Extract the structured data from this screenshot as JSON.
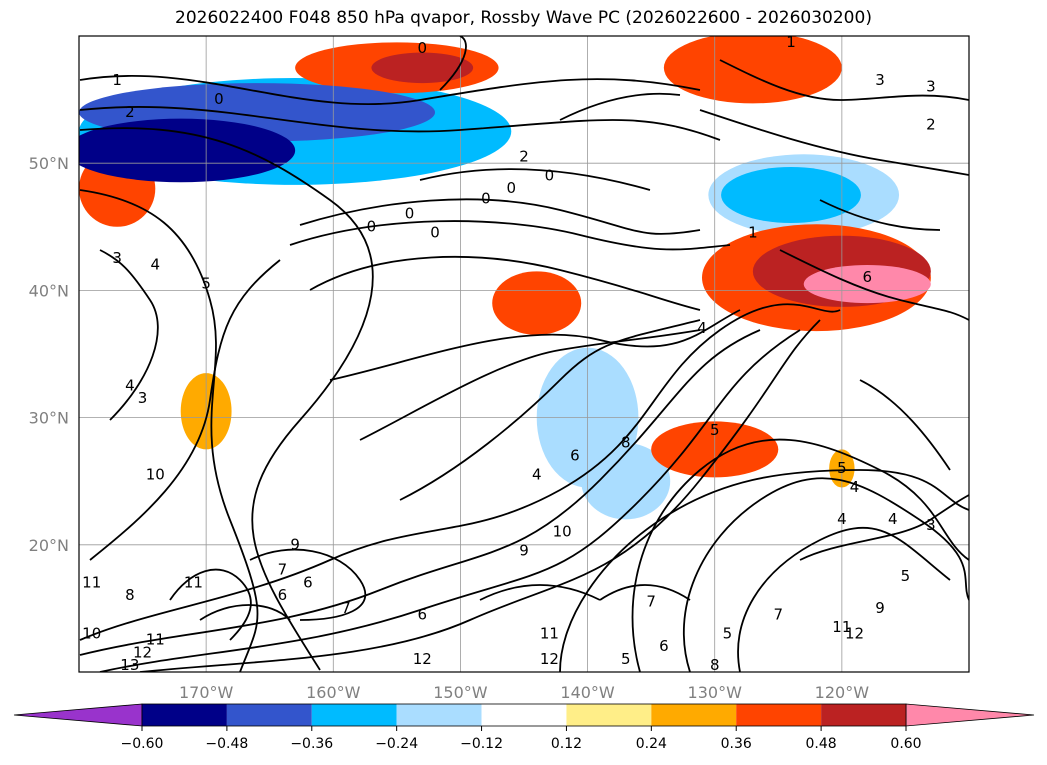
{
  "chart_data": {
    "type": "contour-map",
    "title": "2026022400 F048 850 hPa qvapor, Rossby Wave PC (2026022600 - 2026030200)",
    "projection": "cylindrical",
    "lon_range": [
      -180,
      -110
    ],
    "lat_range": [
      10,
      60
    ],
    "grid": true,
    "x_ticks": [
      {
        "lon": -170,
        "label": "170°W"
      },
      {
        "lon": -160,
        "label": "160°W"
      },
      {
        "lon": -150,
        "label": "150°W"
      },
      {
        "lon": -140,
        "label": "140°W"
      },
      {
        "lon": -130,
        "label": "130°W"
      },
      {
        "lon": -120,
        "label": "120°W"
      }
    ],
    "y_ticks": [
      {
        "lat": 20,
        "label": "20°N"
      },
      {
        "lat": 30,
        "label": "30°N"
      },
      {
        "lat": 40,
        "label": "40°N"
      },
      {
        "lat": 50,
        "label": "50°N"
      }
    ],
    "colorbar": {
      "levels": [
        -0.72,
        -0.6,
        -0.48,
        -0.36,
        -0.24,
        -0.12,
        0.12,
        0.24,
        0.36,
        0.48,
        0.6,
        0.72
      ],
      "colors": [
        "#9933cc",
        "#000088",
        "#3355cc",
        "#00bbff",
        "#aaddff",
        "#ffffff",
        "#ffee88",
        "#ffaa00",
        "#ff4400",
        "#bb2222",
        "#ff88aa"
      ],
      "extend_min_color": "#9933cc",
      "extend_max_color": "#ff88aa",
      "tick_labels": [
        "−0.60",
        "−0.48",
        "−0.36",
        "−0.24",
        "−0.12",
        "0.12",
        "0.24",
        "0.36",
        "0.48",
        "0.60"
      ]
    },
    "shaded_anomalies": [
      {
        "lon": -172,
        "lat": 51,
        "rx": 9,
        "ry": 2.5,
        "level": -0.6
      },
      {
        "lon": -166,
        "lat": 54,
        "rx": 14,
        "ry": 2.3,
        "level": -0.48
      },
      {
        "lon": -163,
        "lat": 52.5,
        "rx": 17,
        "ry": 4.2,
        "level": -0.36
      },
      {
        "lon": -124,
        "lat": 47.5,
        "rx": 5.5,
        "ry": 2.2,
        "level": -0.36
      },
      {
        "lon": -123,
        "lat": 47.5,
        "rx": 7.5,
        "ry": 3.2,
        "level": -0.24
      },
      {
        "lon": -140,
        "lat": 30,
        "rx": 4,
        "ry": 5.5,
        "level": -0.24
      },
      {
        "lon": -137,
        "lat": 25,
        "rx": 3.5,
        "ry": 3,
        "level": -0.24
      },
      {
        "lon": -155,
        "lat": 57.5,
        "rx": 8,
        "ry": 2,
        "level": 0.36
      },
      {
        "lon": -153,
        "lat": 57.5,
        "rx": 4,
        "ry": 1.2,
        "level": 0.48
      },
      {
        "lon": -127,
        "lat": 57.5,
        "rx": 7,
        "ry": 2.8,
        "level": 0.36
      },
      {
        "lon": -120,
        "lat": 41.5,
        "rx": 7,
        "ry": 2.8,
        "level": 0.48
      },
      {
        "lon": -118,
        "lat": 40.5,
        "rx": 5,
        "ry": 1.5,
        "level": 0.6
      },
      {
        "lon": -122,
        "lat": 41,
        "rx": 9,
        "ry": 4.2,
        "level": 0.36
      },
      {
        "lon": -144,
        "lat": 39,
        "rx": 3.5,
        "ry": 2.5,
        "level": 0.36
      },
      {
        "lon": -130,
        "lat": 27.5,
        "rx": 5,
        "ry": 2.2,
        "level": 0.36
      },
      {
        "lon": -177,
        "lat": 48,
        "rx": 3,
        "ry": 3,
        "level": 0.36
      },
      {
        "lon": -170,
        "lat": 30.5,
        "rx": 2,
        "ry": 3,
        "level": 0.24
      },
      {
        "lon": -120,
        "lat": 26,
        "rx": 1,
        "ry": 1.5,
        "level": 0.24
      }
    ],
    "contour_labels": [
      {
        "text": "1",
        "lon": -177,
        "lat": 56.5
      },
      {
        "text": "0",
        "lon": -169,
        "lat": 55
      },
      {
        "text": "2",
        "lon": -176,
        "lat": 54
      },
      {
        "text": "0",
        "lon": -153,
        "lat": 59
      },
      {
        "text": "1",
        "lon": -124,
        "lat": 59.5
      },
      {
        "text": "3",
        "lon": -117,
        "lat": 56.5
      },
      {
        "text": "3",
        "lon": -113,
        "lat": 56
      },
      {
        "text": "2",
        "lon": -113,
        "lat": 53
      },
      {
        "text": "2",
        "lon": -145,
        "lat": 50.5
      },
      {
        "text": "0",
        "lon": -143,
        "lat": 49
      },
      {
        "text": "0",
        "lon": -146,
        "lat": 48
      },
      {
        "text": "0",
        "lon": -148,
        "lat": 47.2
      },
      {
        "text": "0",
        "lon": -154,
        "lat": 46
      },
      {
        "text": "0",
        "lon": -157,
        "lat": 45
      },
      {
        "text": "0",
        "lon": -152,
        "lat": 44.5
      },
      {
        "text": "1",
        "lon": -127,
        "lat": 44.5
      },
      {
        "text": "6",
        "lon": -118,
        "lat": 41
      },
      {
        "text": "4",
        "lon": -131,
        "lat": 37
      },
      {
        "text": "3",
        "lon": -177,
        "lat": 42.5
      },
      {
        "text": "4",
        "lon": -174,
        "lat": 42
      },
      {
        "text": "5",
        "lon": -170,
        "lat": 40.5
      },
      {
        "text": "4",
        "lon": -176,
        "lat": 32.5
      },
      {
        "text": "3",
        "lon": -175,
        "lat": 31.5
      },
      {
        "text": "10",
        "lon": -174,
        "lat": 25.5
      },
      {
        "text": "4",
        "lon": -144,
        "lat": 25.5
      },
      {
        "text": "6",
        "lon": -141,
        "lat": 27
      },
      {
        "text": "8",
        "lon": -137,
        "lat": 28
      },
      {
        "text": "10",
        "lon": -142,
        "lat": 21
      },
      {
        "text": "9",
        "lon": -145,
        "lat": 19.5
      },
      {
        "text": "5",
        "lon": -130,
        "lat": 29
      },
      {
        "text": "5",
        "lon": -120,
        "lat": 26
      },
      {
        "text": "4",
        "lon": -119,
        "lat": 24.5
      },
      {
        "text": "4",
        "lon": -120,
        "lat": 22
      },
      {
        "text": "4",
        "lon": -116,
        "lat": 22
      },
      {
        "text": "3",
        "lon": -113,
        "lat": 21.5
      },
      {
        "text": "5",
        "lon": -115,
        "lat": 17.5
      },
      {
        "text": "9",
        "lon": -163,
        "lat": 20
      },
      {
        "text": "7",
        "lon": -164,
        "lat": 18
      },
      {
        "text": "6",
        "lon": -162,
        "lat": 17
      },
      {
        "text": "6",
        "lon": -164,
        "lat": 16
      },
      {
        "text": "11",
        "lon": -171,
        "lat": 17
      },
      {
        "text": "8",
        "lon": -176,
        "lat": 16
      },
      {
        "text": "11",
        "lon": -179,
        "lat": 17
      },
      {
        "text": "7",
        "lon": -159,
        "lat": 15
      },
      {
        "text": "6",
        "lon": -153,
        "lat": 14.5
      },
      {
        "text": "10",
        "lon": -179,
        "lat": 13
      },
      {
        "text": "11",
        "lon": -174,
        "lat": 12.5
      },
      {
        "text": "12",
        "lon": -175,
        "lat": 11.5
      },
      {
        "text": "13",
        "lon": -176,
        "lat": 10.5
      },
      {
        "text": "11",
        "lon": -143,
        "lat": 13
      },
      {
        "text": "12",
        "lon": -153,
        "lat": 11
      },
      {
        "text": "12",
        "lon": -143,
        "lat": 11
      },
      {
        "text": "7",
        "lon": -135,
        "lat": 15.5
      },
      {
        "text": "6",
        "lon": -134,
        "lat": 12
      },
      {
        "text": "5",
        "lon": -129,
        "lat": 13
      },
      {
        "text": "8",
        "lon": -130,
        "lat": 10.5
      },
      {
        "text": "5",
        "lon": -137,
        "lat": 11
      },
      {
        "text": "7",
        "lon": -125,
        "lat": 14.5
      },
      {
        "text": "11",
        "lon": -120,
        "lat": 13.5
      },
      {
        "text": "12",
        "lon": -119,
        "lat": 13
      },
      {
        "text": "9",
        "lon": -117,
        "lat": 15
      }
    ]
  }
}
